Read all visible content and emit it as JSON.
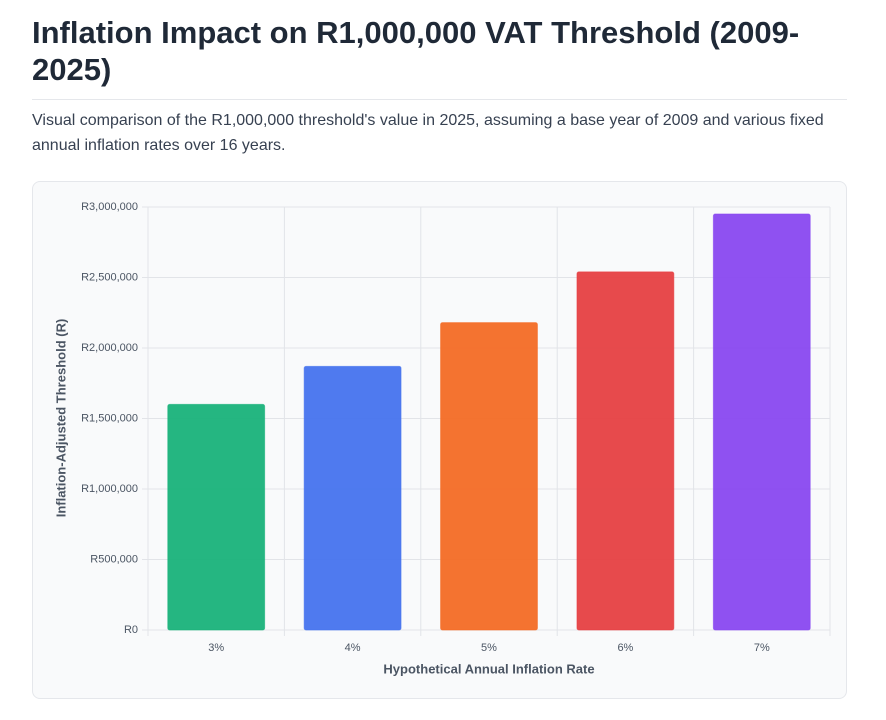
{
  "chart_data": {
    "type": "bar",
    "title": "Inflation Impact on R1,000,000 VAT Threshold (2009-2025)",
    "subtitle": "Visual comparison of the R1,000,000 threshold's value in 2025, assuming a base year of 2009 and various fixed annual inflation rates over 16 years.",
    "x_label": "Hypothetical Annual Inflation Rate",
    "y_label": "Inflation-Adjusted Threshold (R)",
    "categories": [
      "3%",
      "4%",
      "5%",
      "6%",
      "7%"
    ],
    "values": [
      1600000,
      1870000,
      2180000,
      2540000,
      2950000
    ],
    "colors": [
      "#19b27a",
      "#4673ee",
      "#f36b25",
      "#e64042",
      "#8948f0"
    ],
    "ylim": [
      0,
      3000000
    ],
    "yticks": [
      {
        "value": 0,
        "label": "R0"
      },
      {
        "value": 500000,
        "label": "R500,000"
      },
      {
        "value": 1000000,
        "label": "R1,000,000"
      },
      {
        "value": 1500000,
        "label": "R1,500,000"
      },
      {
        "value": 2000000,
        "label": "R2,000,000"
      },
      {
        "value": 2500000,
        "label": "R2,500,000"
      },
      {
        "value": 3000000,
        "label": "R3,000,000"
      }
    ],
    "grid": true
  }
}
